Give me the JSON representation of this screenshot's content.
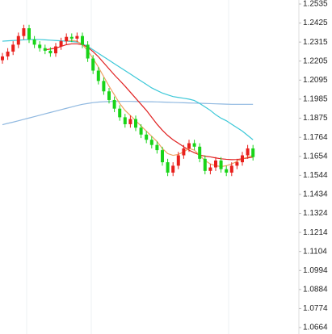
{
  "chart_data": {
    "type": "candlestick",
    "up_color": "#e8201c",
    "down_color": "#18d418",
    "open": [
      1.221,
      1.2232,
      1.226,
      1.23,
      1.235,
      1.2395,
      1.233,
      1.23,
      1.228,
      1.2265,
      1.225,
      1.229,
      1.232,
      1.2345,
      1.2335,
      1.235,
      1.23,
      1.222,
      1.215,
      1.209,
      1.203,
      1.198,
      1.193,
      1.188,
      1.184,
      1.187,
      1.182,
      1.178,
      1.175,
      1.172,
      1.169,
      1.162,
      1.156,
      1.16,
      1.166,
      1.17,
      1.173,
      1.171,
      1.164,
      1.157,
      1.159,
      1.163,
      1.158,
      1.156,
      1.16,
      1.162,
      1.166,
      1.17
    ],
    "high": [
      1.2252,
      1.228,
      1.232,
      1.237,
      1.2415,
      1.2415,
      1.235,
      1.232,
      1.23,
      1.2285,
      1.231,
      1.234,
      1.2365,
      1.2365,
      1.237,
      1.237,
      1.232,
      1.224,
      1.217,
      1.211,
      1.205,
      1.2,
      1.195,
      1.19,
      1.189,
      1.189,
      1.184,
      1.18,
      1.177,
      1.174,
      1.171,
      1.164,
      1.162,
      1.168,
      1.172,
      1.175,
      1.175,
      1.173,
      1.166,
      1.161,
      1.165,
      1.165,
      1.16,
      1.162,
      1.164,
      1.168,
      1.172,
      1.172
    ],
    "low": [
      1.219,
      1.2212,
      1.224,
      1.228,
      1.233,
      1.231,
      1.228,
      1.226,
      1.2245,
      1.223,
      1.223,
      1.227,
      1.23,
      1.2315,
      1.2315,
      1.228,
      1.22,
      1.213,
      1.207,
      1.201,
      1.196,
      1.191,
      1.186,
      1.182,
      1.182,
      1.18,
      1.176,
      1.173,
      1.17,
      1.167,
      1.16,
      1.154,
      1.154,
      1.158,
      1.164,
      1.168,
      1.169,
      1.162,
      1.155,
      1.155,
      1.157,
      1.156,
      1.154,
      1.154,
      1.158,
      1.16,
      1.164,
      1.163
    ],
    "close": [
      1.2232,
      1.226,
      1.23,
      1.235,
      1.2395,
      1.233,
      1.23,
      1.228,
      1.2265,
      1.225,
      1.229,
      1.232,
      1.2345,
      1.2335,
      1.235,
      1.23,
      1.222,
      1.215,
      1.209,
      1.203,
      1.198,
      1.193,
      1.188,
      1.184,
      1.187,
      1.182,
      1.178,
      1.175,
      1.172,
      1.169,
      1.162,
      1.156,
      1.16,
      1.166,
      1.17,
      1.173,
      1.171,
      1.164,
      1.157,
      1.159,
      1.163,
      1.158,
      1.156,
      1.16,
      1.162,
      1.166,
      1.17,
      1.165
    ],
    "lines": [
      {
        "color": "#8fb8e0",
        "values": [
          1.1837,
          1.1845,
          1.1852,
          1.186,
          1.1868,
          1.1876,
          1.1884,
          1.1892,
          1.19,
          1.1908,
          1.1916,
          1.1924,
          1.1932,
          1.194,
          1.1948,
          1.1955,
          1.196,
          1.1965,
          1.1968,
          1.197,
          1.1971,
          1.1972,
          1.1972,
          1.1972,
          1.1972,
          1.1971,
          1.1971,
          1.197,
          1.197,
          1.1969,
          1.1968,
          1.1967,
          1.1966,
          1.1965,
          1.1964,
          1.1963,
          1.1962,
          1.1961,
          1.196,
          1.1959,
          1.1958,
          1.1957,
          1.1956,
          1.1955,
          1.1955,
          1.1955,
          1.1955,
          1.1955
        ]
      },
      {
        "color": "#3cc8d8",
        "values": [
          1.232,
          1.2322,
          1.2324,
          1.2326,
          1.2328,
          1.233,
          1.233,
          1.233,
          1.2328,
          1.2326,
          1.2324,
          1.2322,
          1.232,
          1.2318,
          1.2315,
          1.2305,
          1.229,
          1.227,
          1.225,
          1.223,
          1.221,
          1.219,
          1.217,
          1.215,
          1.213,
          1.211,
          1.209,
          1.207,
          1.205,
          1.2035,
          1.202,
          1.201,
          1.2,
          1.1995,
          1.199,
          1.1985,
          1.1977,
          1.196,
          1.194,
          1.192,
          1.1895,
          1.1875,
          1.186,
          1.184,
          1.182,
          1.18,
          1.1775,
          1.175
        ]
      },
      {
        "color": "#e02020",
        "values": [
          null,
          null,
          null,
          null,
          null,
          null,
          null,
          null,
          1.227,
          1.2275,
          1.228,
          1.229,
          1.23,
          1.2305,
          1.2305,
          1.23,
          1.2285,
          1.226,
          1.223,
          1.2195,
          1.216,
          1.2125,
          1.2093,
          1.206,
          1.2025,
          1.199,
          1.1955,
          1.192,
          1.188,
          1.184,
          1.1805,
          1.1775,
          1.175,
          1.173,
          1.171,
          1.169,
          1.1675,
          1.1662,
          1.1655,
          1.1651,
          1.1645,
          1.164,
          1.1637,
          1.1635,
          1.1636,
          1.164,
          1.1645,
          1.165
        ]
      },
      {
        "color": "#f0a060",
        "values": [
          null,
          null,
          null,
          null,
          null,
          null,
          null,
          null,
          null,
          null,
          null,
          null,
          1.232,
          1.2325,
          1.232,
          1.23,
          1.2265,
          1.222,
          1.217,
          1.2115,
          1.206,
          1.201,
          1.196,
          1.192,
          1.189,
          1.186,
          1.183,
          1.18,
          1.177,
          1.174,
          1.17,
          1.167,
          1.166,
          1.1665,
          1.168,
          1.17,
          1.169,
          1.166,
          1.163,
          1.161,
          1.16,
          1.1595,
          1.16,
          1.161,
          1.1625,
          1.164,
          1.165,
          1.166
        ]
      }
    ],
    "ylim": [
      1.0664,
      1.2535
    ],
    "yticks": [
      1.2535,
      1.2425,
      1.2315,
      1.2205,
      1.2095,
      1.1985,
      1.1875,
      1.1764,
      1.1654,
      1.1544,
      1.1434,
      1.1324,
      1.1214,
      1.1104,
      1.0994,
      1.0884,
      1.0774,
      1.0664
    ]
  }
}
